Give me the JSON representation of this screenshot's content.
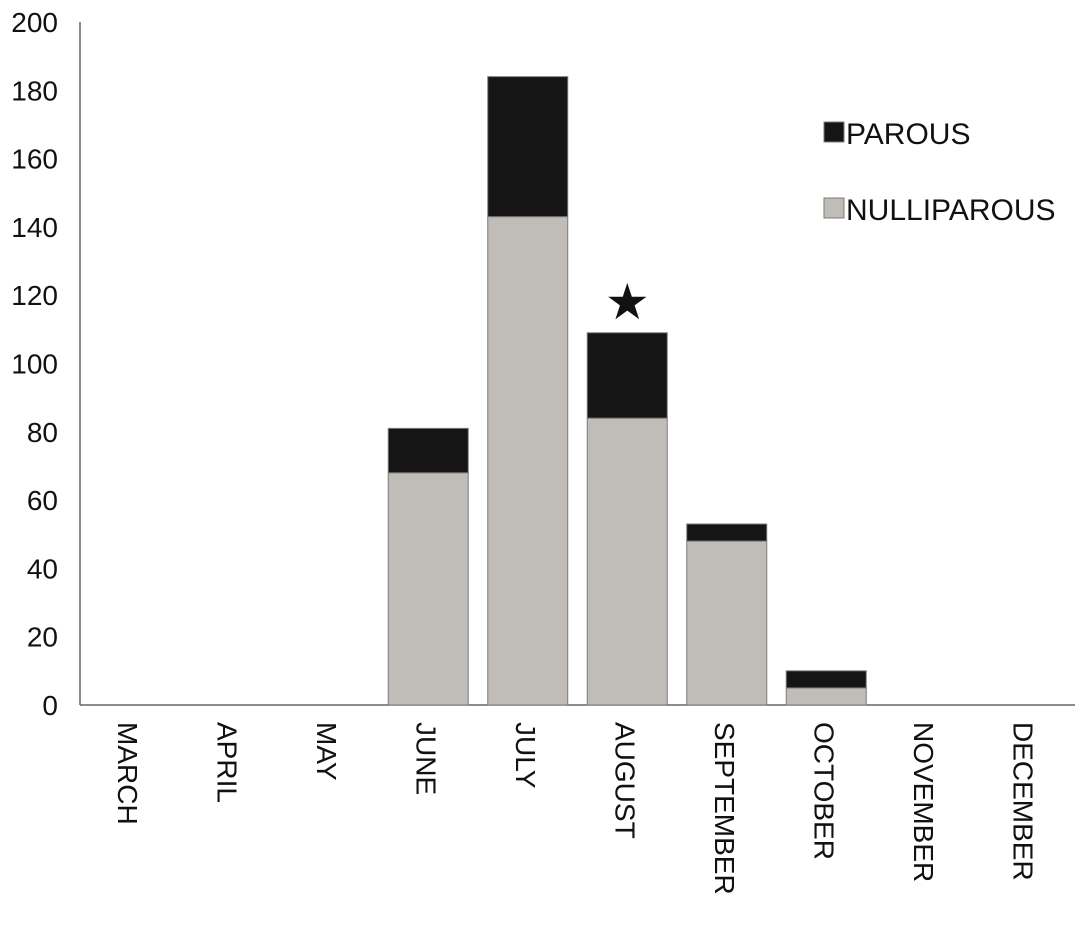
{
  "chart_data": {
    "type": "bar",
    "stacked": true,
    "categories": [
      "MARCH",
      "APRIL",
      "MAY",
      "JUNE",
      "JULY",
      "AUGUST",
      "SEPTEMBER",
      "OCTOBER",
      "NOVEMBER",
      "DECEMBER"
    ],
    "series": [
      {
        "name": "NULLIPAROUS",
        "color": "#c0bdb8",
        "values": [
          0,
          0,
          0,
          68,
          143,
          84,
          48,
          5,
          0,
          0
        ]
      },
      {
        "name": "PAROUS",
        "color": "#151515",
        "values": [
          0,
          0,
          0,
          13,
          41,
          25,
          5,
          5,
          0,
          0
        ]
      }
    ],
    "yticks": [
      "0",
      "20",
      "40",
      "60",
      "80",
      "100",
      "120",
      "140",
      "160",
      "180",
      "200"
    ],
    "ylim": [
      0,
      200
    ],
    "grid": false,
    "legend_position": "top-right",
    "annotations": [
      {
        "category": "AUGUST",
        "symbol": "★"
      }
    ]
  }
}
